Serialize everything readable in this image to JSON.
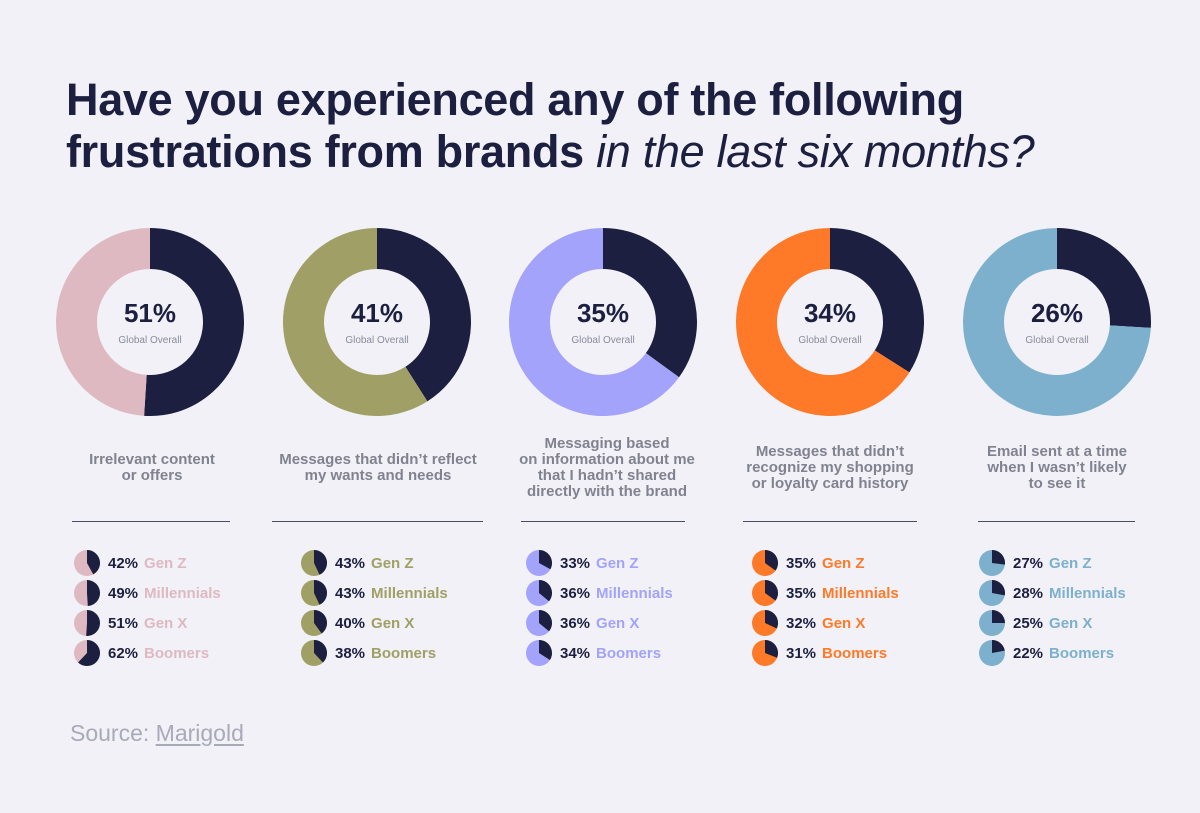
{
  "title": {
    "bold": "Have you experienced any of the following frustrations from brands",
    "italic": "in the last six months?"
  },
  "source": {
    "prefix": "Source:",
    "link": "Marigold"
  },
  "colors": {
    "dark": "#1c1f3f"
  },
  "chart_data": {
    "type": "pie",
    "center_caption": "Global Overall",
    "charts": [
      {
        "label": "Irrelevant content or offers",
        "label_lines": [
          "Irrelevant content",
          "or offers"
        ],
        "value": 51,
        "value_label": "51%",
        "color": "#dfb9c2",
        "generations": [
          {
            "name": "Gen Z",
            "value": 42,
            "value_label": "42%"
          },
          {
            "name": "Millennials",
            "value": 49,
            "value_label": "49%"
          },
          {
            "name": "Gen X",
            "value": 51,
            "value_label": "51%"
          },
          {
            "name": "Boomers",
            "value": 62,
            "value_label": "62%"
          }
        ]
      },
      {
        "label": "Messages that didn't reflect my wants and needs",
        "label_lines": [
          "Messages that didn’t reflect",
          "my wants and needs"
        ],
        "value": 41,
        "value_label": "41%",
        "color": "#a0a066",
        "generations": [
          {
            "name": "Gen Z",
            "value": 43,
            "value_label": "43%"
          },
          {
            "name": "Millennials",
            "value": 43,
            "value_label": "43%"
          },
          {
            "name": "Gen X",
            "value": 40,
            "value_label": "40%"
          },
          {
            "name": "Boomers",
            "value": 38,
            "value_label": "38%"
          }
        ]
      },
      {
        "label": "Messaging based on information about me that I hadn't shared directly with the brand",
        "label_lines": [
          "Messaging based",
          "on information about me",
          "that I hadn’t shared",
          "directly with the brand"
        ],
        "value": 35,
        "value_label": "35%",
        "color": "#a3a3fb",
        "generations": [
          {
            "name": "Gen Z",
            "value": 33,
            "value_label": "33%"
          },
          {
            "name": "Millennials",
            "value": 36,
            "value_label": "36%"
          },
          {
            "name": "Gen X",
            "value": 36,
            "value_label": "36%"
          },
          {
            "name": "Boomers",
            "value": 34,
            "value_label": "34%"
          }
        ]
      },
      {
        "label": "Messages that didn't recognize my shopping or loyalty card history",
        "label_lines": [
          "Messages that didn’t",
          "recognize my shopping",
          "or loyalty card history"
        ],
        "value": 34,
        "value_label": "34%",
        "color": "#fe7a28",
        "generations": [
          {
            "name": "Gen Z",
            "value": 35,
            "value_label": "35%"
          },
          {
            "name": "Millennials",
            "value": 35,
            "value_label": "35%"
          },
          {
            "name": "Gen X",
            "value": 32,
            "value_label": "32%"
          },
          {
            "name": "Boomers",
            "value": 31,
            "value_label": "31%"
          }
        ]
      },
      {
        "label": "Email sent at a time when I wasn't likely to see it",
        "label_lines": [
          "Email sent at a time",
          "when I wasn’t likely",
          "to see it"
        ],
        "value": 26,
        "value_label": "26%",
        "color": "#7db0cd",
        "generations": [
          {
            "name": "Gen Z",
            "value": 27,
            "value_label": "27%"
          },
          {
            "name": "Millennials",
            "value": 28,
            "value_label": "28%"
          },
          {
            "name": "Gen X",
            "value": 25,
            "value_label": "25%"
          },
          {
            "name": "Boomers",
            "value": 22,
            "value_label": "22%"
          }
        ]
      }
    ]
  }
}
